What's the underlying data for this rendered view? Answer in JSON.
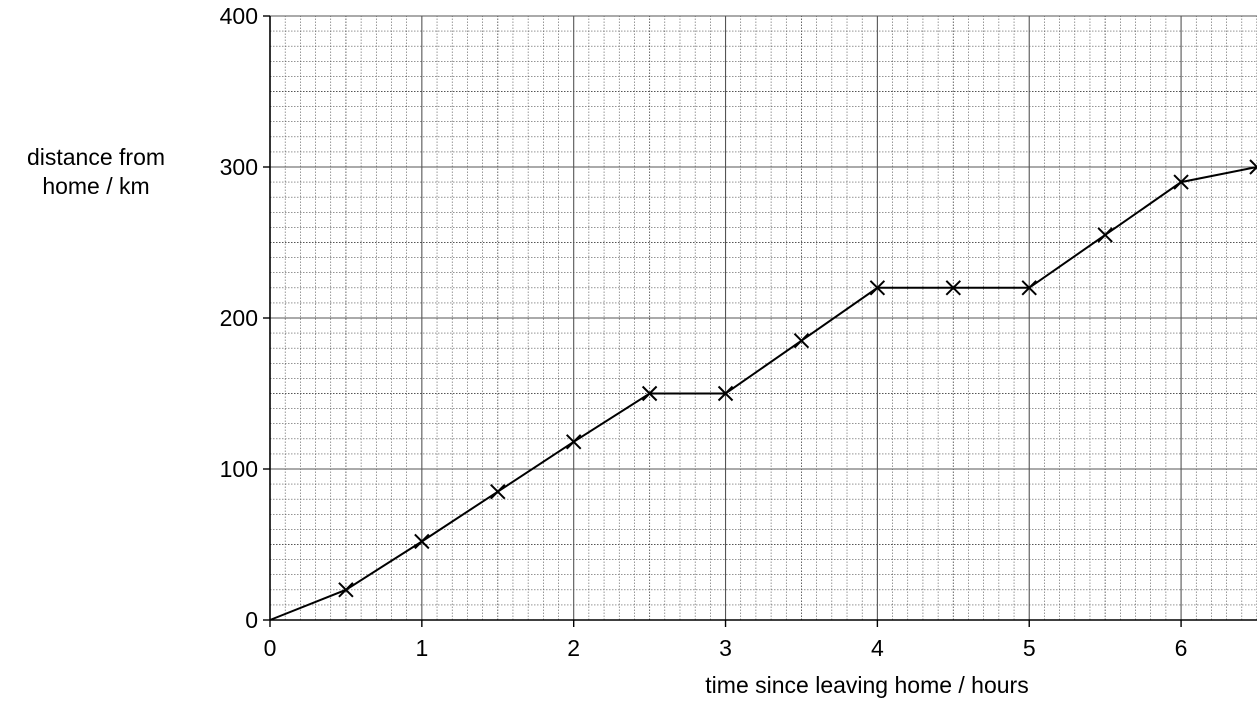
{
  "chart_data": {
    "type": "line",
    "title": "",
    "xlabel": "time since leaving home / hours",
    "ylabel": [
      "distance from",
      "home / km"
    ],
    "xlim": [
      0,
      6.5
    ],
    "ylim": [
      0,
      400
    ],
    "x_ticks": [
      "0",
      "1",
      "2",
      "3",
      "4",
      "5",
      "6"
    ],
    "y_ticks": [
      "0",
      "100",
      "200",
      "300",
      "400"
    ],
    "grid": "on (fine squared graph paper, 0.1 h by 10 km)",
    "marker": "cross",
    "series": [
      {
        "x": [
          0,
          0.5,
          1,
          1.5,
          2,
          2.5,
          3,
          3.5,
          4,
          4.5,
          5,
          5.5,
          6,
          6.5
        ],
        "y": [
          0,
          20,
          52,
          85,
          118,
          150,
          150,
          185,
          220,
          220,
          220,
          255,
          290,
          300
        ]
      }
    ],
    "colors": {
      "line": "#000000",
      "grid": "#555555"
    }
  }
}
